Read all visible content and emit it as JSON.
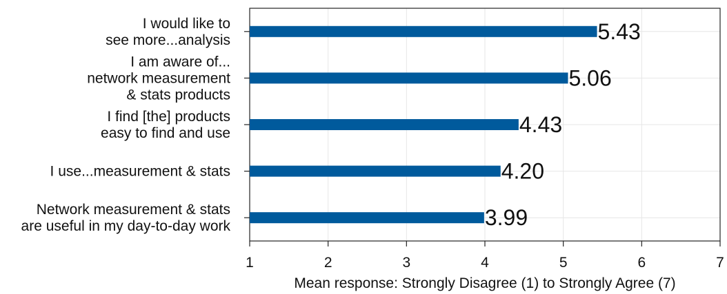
{
  "chart_data": {
    "type": "bar",
    "orientation": "horizontal",
    "categories": [
      [
        "I would like to",
        "see more...analysis"
      ],
      [
        "I am aware of...",
        "network measurement",
        "& stats products"
      ],
      [
        "I find [the] products",
        "easy to find and use"
      ],
      [
        "I use...measurement & stats"
      ],
      [
        "Network measurement & stats",
        "are useful in my day-to-day work"
      ]
    ],
    "values": [
      5.43,
      5.06,
      4.43,
      4.2,
      3.99
    ],
    "value_labels": [
      "5.43",
      "5.06",
      "4.43",
      "4.20",
      "3.99"
    ],
    "xlim": [
      1,
      7
    ],
    "xticks": [
      "1",
      "2",
      "3",
      "4",
      "5",
      "6",
      "7"
    ],
    "xlabel": "Mean response: Strongly Disagree (1) to Strongly Agree (7)",
    "ylabel": "",
    "title": "",
    "grid": true,
    "bar_color": "#005a9c"
  }
}
